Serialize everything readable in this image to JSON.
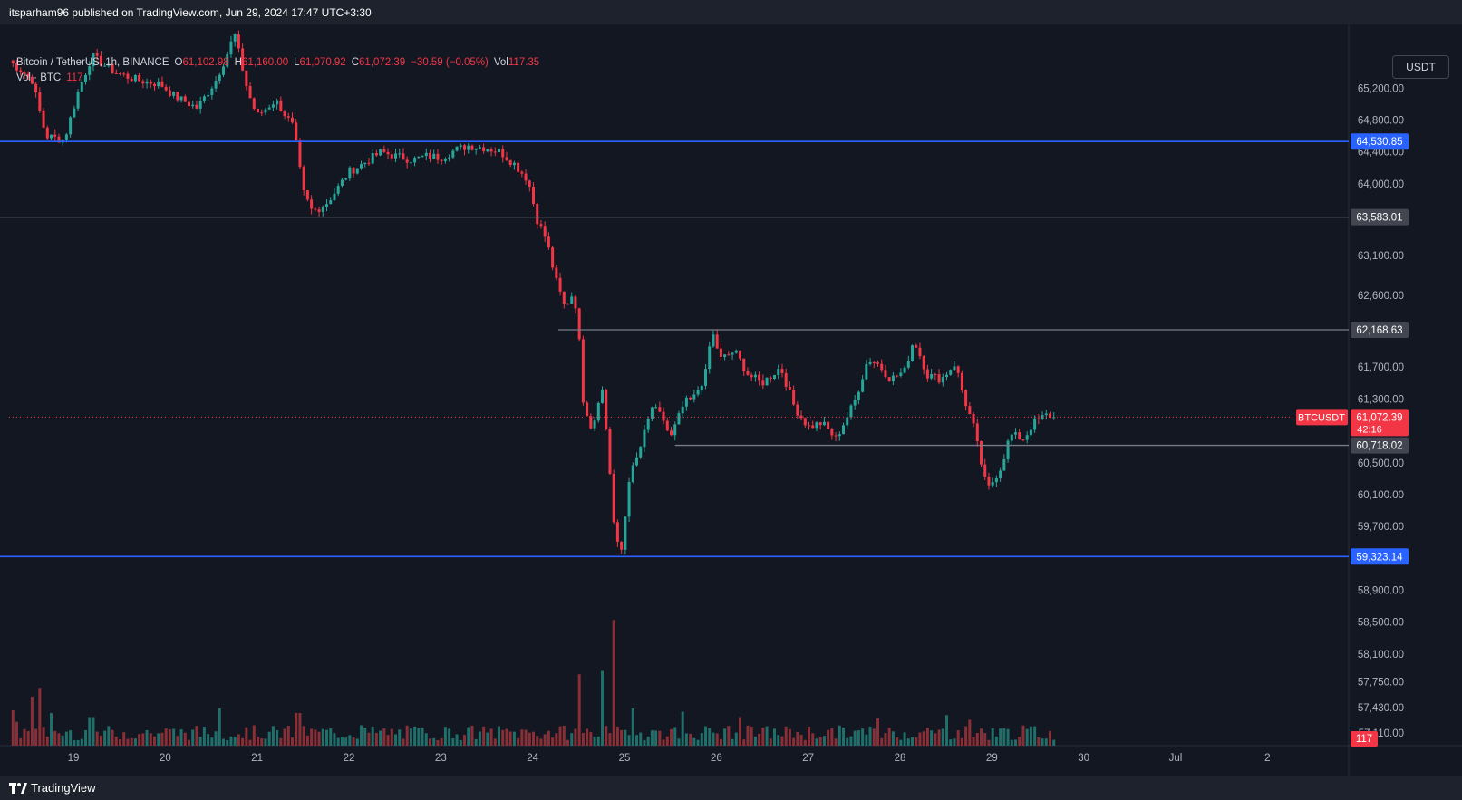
{
  "header": {
    "published_line": "itsparham96 published on TradingView.com, Jun 29, 2024 17:47 UTC+3:30"
  },
  "legend": {
    "symbol": "Bitcoin / TetherUS, 1h, BINANCE",
    "open_label": "O",
    "open_value": "61,102.98",
    "high_label": "H",
    "high_value": "61,160.00",
    "low_label": "L",
    "low_value": "61,070.92",
    "close_label": "C",
    "close_value": "61,072.39",
    "change_value": "−30.59 (−0.05%)",
    "vol_label": "Vol",
    "vol_value": "117.35",
    "volume_study_label": "Vol · BTC",
    "volume_study_value": "117"
  },
  "currency_button": "USDT",
  "footer": {
    "brand": "TradingView"
  },
  "colors": {
    "background": "#131722",
    "up": "#26a69a",
    "down": "#f23645",
    "up_volume": "#1f6f6a",
    "down_volume": "#8a2f36",
    "blue_level": "#2962ff",
    "gray_level": "#787b86",
    "price_line": "#f23645"
  },
  "chart_data": {
    "type": "candlestick",
    "title": "Bitcoin / TetherUS, 1h, BINANCE",
    "timeframe": "1h",
    "ylim": [
      56950,
      66000
    ],
    "y_ticks": [
      "65,200.00",
      "64,800.00",
      "64,400.00",
      "64,000.00",
      "63,100.00",
      "62,600.00",
      "61,700.00",
      "61,300.00",
      "60,500.00",
      "60,100.00",
      "59,700.00",
      "58,900.00",
      "58,500.00",
      "58,100.00",
      "57,750.00",
      "57,430.00",
      "57,110.00"
    ],
    "x_ticks": [
      "19",
      "20",
      "21",
      "22",
      "23",
      "24",
      "25",
      "26",
      "27",
      "28",
      "29",
      "30",
      "Jul",
      "2"
    ],
    "levels": [
      {
        "price": 64530.85,
        "label": "64,530.85",
        "color": "blue",
        "from_day": 18.2
      },
      {
        "price": 63583.01,
        "label": "63,583.01",
        "color": "gray",
        "from_day": 18.2
      },
      {
        "price": 62168.63,
        "label": "62,168.63",
        "color": "gray",
        "from_day": 24.28
      },
      {
        "price": 60718.02,
        "label": "60,718.02",
        "color": "gray",
        "from_day": 25.55
      },
      {
        "price": 59323.14,
        "label": "59,323.14",
        "color": "blue",
        "from_day": 18.2
      }
    ],
    "current_price": {
      "price": 61072.39,
      "label": "61,072.39",
      "symbol": "BTCUSDT",
      "countdown": "42:16"
    },
    "volume_last": "117",
    "price_path": [
      [
        18.3,
        65550
      ],
      [
        18.55,
        65300
      ],
      [
        18.7,
        64600
      ],
      [
        18.9,
        64550
      ],
      [
        19.05,
        65150
      ],
      [
        19.2,
        65600
      ],
      [
        19.45,
        65400
      ],
      [
        19.7,
        65300
      ],
      [
        19.95,
        65250
      ],
      [
        20.1,
        65100
      ],
      [
        20.35,
        64950
      ],
      [
        20.55,
        65300
      ],
      [
        20.7,
        65700
      ],
      [
        20.75,
        65900
      ],
      [
        20.9,
        65150
      ],
      [
        21.0,
        64850
      ],
      [
        21.2,
        65050
      ],
      [
        21.4,
        64700
      ],
      [
        21.5,
        63900
      ],
      [
        21.6,
        63650
      ],
      [
        21.75,
        63750
      ],
      [
        21.85,
        63900
      ],
      [
        22.0,
        64150
      ],
      [
        22.15,
        64250
      ],
      [
        22.35,
        64400
      ],
      [
        22.5,
        64350
      ],
      [
        22.7,
        64300
      ],
      [
        22.85,
        64350
      ],
      [
        23.0,
        64330
      ],
      [
        23.15,
        64420
      ],
      [
        23.3,
        64480
      ],
      [
        23.5,
        64450
      ],
      [
        23.65,
        64400
      ],
      [
        23.8,
        64250
      ],
      [
        23.95,
        64050
      ],
      [
        24.05,
        63550
      ],
      [
        24.15,
        63300
      ],
      [
        24.25,
        62800
      ],
      [
        24.35,
        62450
      ],
      [
        24.45,
        62650
      ],
      [
        24.5,
        62150
      ],
      [
        24.55,
        61300
      ],
      [
        24.65,
        60900
      ],
      [
        24.75,
        61500
      ],
      [
        24.82,
        60700
      ],
      [
        24.9,
        59500
      ],
      [
        24.97,
        59400
      ],
      [
        25.05,
        60300
      ],
      [
        25.15,
        60600
      ],
      [
        25.3,
        61200
      ],
      [
        25.42,
        61050
      ],
      [
        25.5,
        60800
      ],
      [
        25.65,
        61250
      ],
      [
        25.75,
        61300
      ],
      [
        25.88,
        61600
      ],
      [
        25.95,
        62150
      ],
      [
        26.05,
        61800
      ],
      [
        26.2,
        61900
      ],
      [
        26.35,
        61600
      ],
      [
        26.5,
        61500
      ],
      [
        26.7,
        61700
      ],
      [
        26.85,
        61200
      ],
      [
        27.0,
        60950
      ],
      [
        27.15,
        61000
      ],
      [
        27.3,
        60800
      ],
      [
        27.5,
        61250
      ],
      [
        27.65,
        61800
      ],
      [
        27.75,
        61750
      ],
      [
        27.9,
        61550
      ],
      [
        28.05,
        61650
      ],
      [
        28.15,
        62050
      ],
      [
        28.3,
        61600
      ],
      [
        28.45,
        61550
      ],
      [
        28.6,
        61750
      ],
      [
        28.7,
        61300
      ],
      [
        28.8,
        60950
      ],
      [
        28.9,
        60400
      ],
      [
        28.95,
        60150
      ],
      [
        29.1,
        60450
      ],
      [
        29.2,
        60850
      ],
      [
        29.35,
        60800
      ],
      [
        29.45,
        61000
      ],
      [
        29.6,
        61100
      ],
      [
        29.7,
        61072
      ]
    ],
    "volume_spikes": [
      [
        18.32,
        52
      ],
      [
        18.4,
        35
      ],
      [
        18.55,
        72
      ],
      [
        18.65,
        85
      ],
      [
        18.75,
        48
      ],
      [
        19.2,
        42
      ],
      [
        20.6,
        55
      ],
      [
        21.45,
        48
      ],
      [
        22.15,
        30
      ],
      [
        24.5,
        105
      ],
      [
        24.75,
        110
      ],
      [
        24.9,
        185
      ],
      [
        25.1,
        55
      ],
      [
        25.65,
        50
      ],
      [
        26.25,
        42
      ],
      [
        27.75,
        40
      ],
      [
        28.5,
        45
      ],
      [
        28.75,
        38
      ]
    ]
  }
}
